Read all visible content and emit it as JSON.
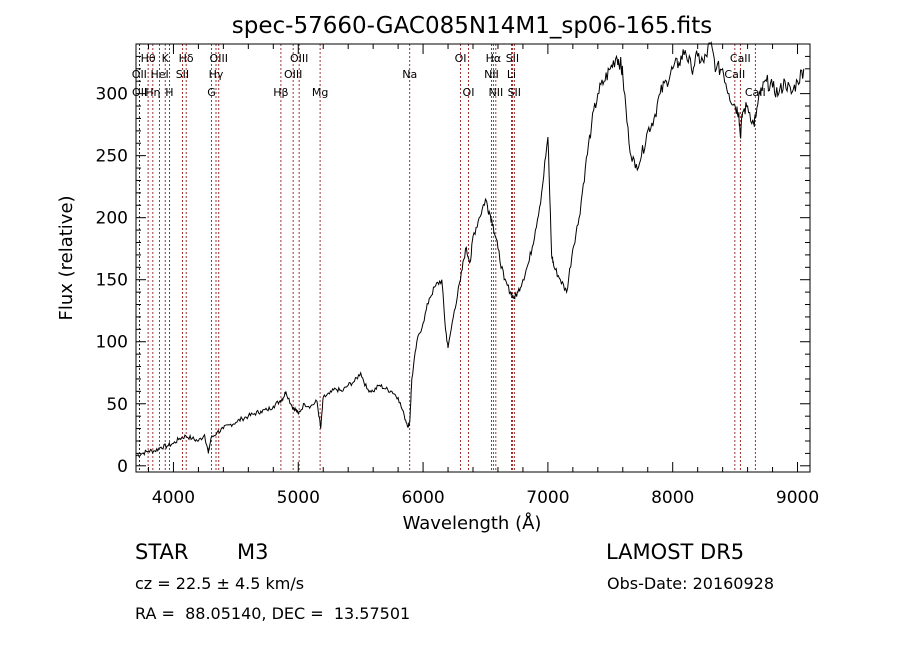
{
  "chart_data": {
    "type": "line",
    "title": "spec-57660-GAC085N14M1_sp06-165.fits",
    "xlabel": "Wavelength (Å)",
    "ylabel": "Flux (relative)",
    "xlim": [
      3700,
      9100
    ],
    "ylim": [
      -5,
      340
    ],
    "xticks": [
      4000,
      5000,
      6000,
      7000,
      8000,
      9000
    ],
    "yticks": [
      0,
      50,
      100,
      150,
      200,
      250,
      300
    ],
    "grid": false,
    "line_color": "#000000",
    "marker_color": "#8b0000",
    "series": [
      {
        "x": [
          3700,
          3750,
          3800,
          3850,
          3900,
          3950,
          4000,
          4050,
          4100,
          4150,
          4200,
          4250,
          4280,
          4300,
          4350,
          4400,
          4450,
          4500,
          4550,
          4600,
          4650,
          4700,
          4750,
          4800,
          4850,
          4880,
          4900,
          4950,
          4980,
          5000,
          5050,
          5100,
          5150,
          5180,
          5200,
          5250,
          5300,
          5350,
          5400,
          5450,
          5500,
          5550,
          5600,
          5650,
          5700,
          5750,
          5800,
          5850,
          5880,
          5893,
          5910,
          5950,
          6000,
          6050,
          6100,
          6150,
          6180,
          6200,
          6250,
          6300,
          6340,
          6380,
          6400,
          6450,
          6500,
          6530,
          6560,
          6600,
          6650,
          6700,
          6730,
          6760,
          6800,
          6850,
          6900,
          6950,
          7000,
          7030,
          7050,
          7100,
          7150,
          7200,
          7250,
          7300,
          7350,
          7400,
          7450,
          7500,
          7550,
          7580,
          7600,
          7650,
          7700,
          7750,
          7800,
          7850,
          7900,
          7950,
          8000,
          8050,
          8100,
          8150,
          8200,
          8250,
          8300,
          8350,
          8400,
          8450,
          8500,
          8530,
          8542,
          8560,
          8600,
          8650,
          8662,
          8700,
          8750,
          8800,
          8850,
          8900,
          8950,
          9000,
          9050
        ],
        "values": [
          8,
          10,
          12,
          12,
          15,
          16,
          18,
          22,
          24,
          22,
          20,
          25,
          10,
          22,
          27,
          30,
          33,
          35,
          38,
          40,
          42,
          44,
          45,
          48,
          52,
          55,
          60,
          48,
          45,
          42,
          50,
          48,
          52,
          30,
          55,
          58,
          62,
          60,
          65,
          68,
          75,
          62,
          60,
          65,
          62,
          60,
          55,
          40,
          32,
          35,
          70,
          100,
          115,
          135,
          145,
          150,
          110,
          95,
          125,
          150,
          175,
          165,
          185,
          200,
          215,
          205,
          195,
          175,
          150,
          140,
          135,
          140,
          150,
          165,
          190,
          220,
          265,
          170,
          160,
          150,
          140,
          175,
          200,
          240,
          275,
          300,
          310,
          320,
          330,
          325,
          315,
          260,
          240,
          250,
          270,
          280,
          300,
          310,
          320,
          325,
          335,
          320,
          330,
          325,
          340,
          320,
          320,
          300,
          290,
          285,
          265,
          285,
          290,
          275,
          280,
          300,
          310,
          305,
          300,
          310,
          300,
          310,
          320
        ]
      }
    ],
    "lines": [
      {
        "label": "OII",
        "x": 3727,
        "row": 2
      },
      {
        "label": "OII",
        "x": 3729,
        "row": 3
      },
      {
        "label": "Hθ",
        "x": 3797,
        "row": 1
      },
      {
        "label": "Hη",
        "x": 3835,
        "row": 3
      },
      {
        "label": "HeI",
        "x": 3889,
        "row": 2
      },
      {
        "label": "K",
        "x": 3934,
        "row": 1
      },
      {
        "label": "H",
        "x": 3968,
        "row": 3
      },
      {
        "label": "Hδ",
        "x": 4102,
        "row": 1
      },
      {
        "label": "SII",
        "x": 4072,
        "row": 2
      },
      {
        "label": "G",
        "x": 4305,
        "row": 3
      },
      {
        "label": "Hγ",
        "x": 4341,
        "row": 2
      },
      {
        "label": "OIII",
        "x": 4363,
        "row": 1
      },
      {
        "label": "Hβ",
        "x": 4861,
        "row": 3
      },
      {
        "label": "OIII",
        "x": 4959,
        "row": 2
      },
      {
        "label": "OIII",
        "x": 5007,
        "row": 1
      },
      {
        "label": "Mg",
        "x": 5175,
        "row": 3
      },
      {
        "label": "Na",
        "x": 5893,
        "row": 2
      },
      {
        "label": "OI",
        "x": 6300,
        "row": 1
      },
      {
        "label": "OI",
        "x": 6364,
        "row": 3
      },
      {
        "label": "NII",
        "x": 6548,
        "row": 2
      },
      {
        "label": "Hα",
        "x": 6563,
        "row": 1
      },
      {
        "label": "NII",
        "x": 6583,
        "row": 3
      },
      {
        "label": "Li",
        "x": 6708,
        "row": 2
      },
      {
        "label": "SII",
        "x": 6716,
        "row": 1
      },
      {
        "label": "SII",
        "x": 6731,
        "row": 3
      },
      {
        "label": "CaII",
        "x": 8498,
        "row": 2
      },
      {
        "label": "CaII",
        "x": 8542,
        "row": 1
      },
      {
        "label": "CaII",
        "x": 8662,
        "row": 3
      }
    ]
  },
  "info": {
    "object_class": "STAR",
    "subclass": "M3",
    "survey": "LAMOST DR5",
    "cz": "cz = 22.5 ± 4.5 km/s",
    "obs_date": "Obs-Date: 20160928",
    "coords": "RA =  88.05140, DEC =  13.57501"
  }
}
